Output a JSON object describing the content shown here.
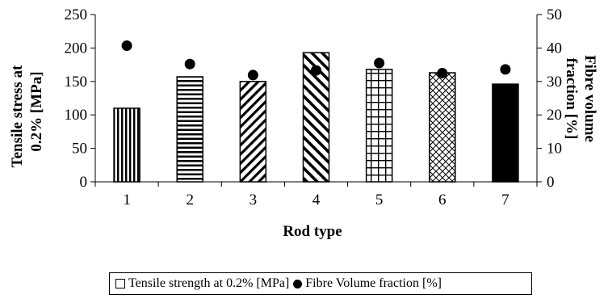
{
  "chart_data": {
    "type": "bar",
    "categories": [
      "1",
      "2",
      "3",
      "4",
      "5",
      "6",
      "7"
    ],
    "xlabel": "Rod type",
    "ylabel_left_line1": "Tensile stress at",
    "ylabel_left_line2": "0.2% [MPa]",
    "ylabel_right_line1": "Fibre volume",
    "ylabel_right_line2": "fraction [%]",
    "ylim_left": [
      0,
      250
    ],
    "yticks_left": [
      "0",
      "50",
      "100",
      "150",
      "200",
      "250"
    ],
    "ylim_right": [
      0,
      50
    ],
    "yticks_right": [
      "0",
      "10",
      "20",
      "30",
      "40",
      "50"
    ],
    "grid": false,
    "legend_position": "bottom",
    "series": [
      {
        "name": "Tensile strength at 0.2% [MPa]",
        "type": "bar",
        "axis": "left",
        "values": [
          110,
          157,
          150,
          193,
          168,
          163,
          146
        ],
        "patterns": [
          "vertical-lines",
          "horizontal-lines",
          "diagonal-up",
          "diagonal-down",
          "grid",
          "crosshatch-diagonal",
          "solid-black"
        ]
      },
      {
        "name": "Fibre Volume fraction [%]",
        "type": "scatter",
        "axis": "right",
        "marker": "filled-circle",
        "values": [
          40.7,
          35.2,
          31.9,
          33.3,
          35.5,
          32.5,
          33.6
        ]
      }
    ]
  }
}
